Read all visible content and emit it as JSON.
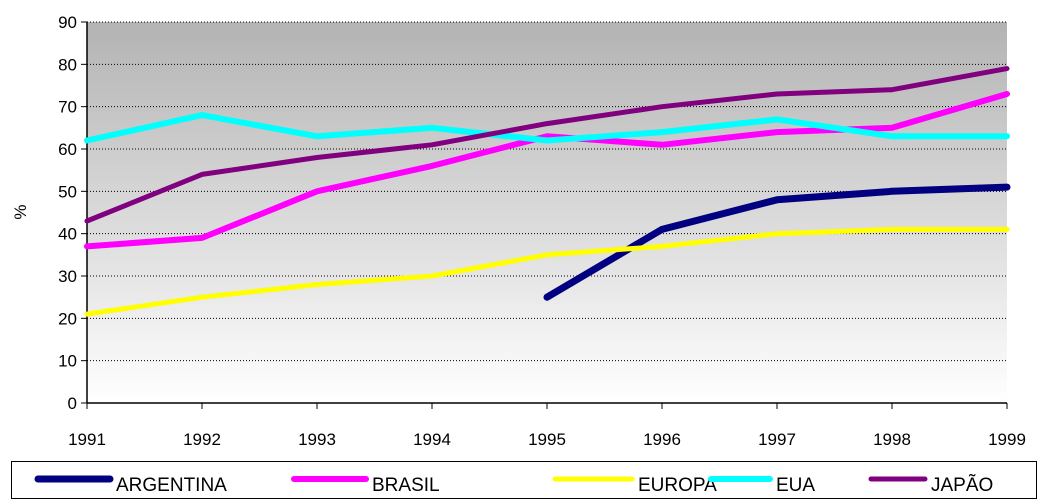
{
  "chart_data": {
    "type": "line",
    "title": "",
    "xlabel": "",
    "ylabel": "%",
    "x": [
      1991,
      1992,
      1993,
      1994,
      1995,
      1996,
      1997,
      1998,
      1999
    ],
    "ylim": [
      0,
      90
    ],
    "yticks": [
      0,
      10,
      20,
      30,
      40,
      50,
      60,
      70,
      80,
      90
    ],
    "grid": "horizontal dotted",
    "legend_position": "bottom",
    "series": [
      {
        "name": "ARGENTINA",
        "color": "#000080",
        "values": [
          null,
          null,
          null,
          null,
          25,
          41,
          48,
          50,
          51
        ]
      },
      {
        "name": "BRASIL",
        "color": "#ff00ff",
        "values": [
          37,
          39,
          50,
          56,
          63,
          61,
          64,
          65,
          73
        ]
      },
      {
        "name": "EUROPA",
        "color": "#ffff00",
        "values": [
          21,
          25,
          28,
          30,
          35,
          37,
          40,
          41,
          41
        ]
      },
      {
        "name": "EUA",
        "color": "#00ffff",
        "values": [
          62,
          68,
          63,
          65,
          62,
          64,
          67,
          63,
          63
        ]
      },
      {
        "name": "JAPÃO",
        "color": "#800080",
        "values": [
          43,
          54,
          58,
          61,
          66,
          70,
          73,
          74,
          79
        ]
      }
    ]
  }
}
